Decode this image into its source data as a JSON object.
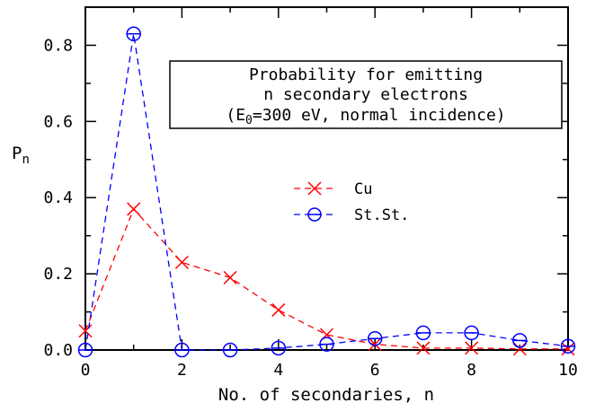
{
  "chart_data": {
    "type": "line",
    "xlabel": "No. of secondaries, n",
    "ylabel": {
      "main": "P",
      "sub": "n"
    },
    "xlim": [
      0,
      10
    ],
    "ylim": [
      0,
      0.9
    ],
    "xticks": [
      0,
      2,
      4,
      6,
      8,
      10
    ],
    "yticks": [
      0.0,
      0.2,
      0.4,
      0.6,
      0.8
    ],
    "xtick_labels": [
      "0",
      "2",
      "4",
      "6",
      "8",
      "10"
    ],
    "ytick_labels": [
      "0.0",
      "0.2",
      "0.4",
      "0.6",
      "0.8"
    ],
    "grid": false,
    "annotation": {
      "line1": "Probability for emitting",
      "line2": "n secondary electrons",
      "line3_pre": "(E",
      "line3_sub": "0",
      "line3_post": "=300 eV, normal incidence)"
    },
    "legend_placement": "center-right",
    "series": [
      {
        "name": "Cu",
        "color": "#ff0000",
        "marker": "x",
        "x": [
          0,
          1,
          2,
          3,
          4,
          5,
          6,
          7,
          8,
          9,
          10
        ],
        "y": [
          0.05,
          0.37,
          0.23,
          0.19,
          0.105,
          0.04,
          0.015,
          0.005,
          0.005,
          0.003,
          0.003
        ]
      },
      {
        "name": "St.St.",
        "color": "#0000ff",
        "marker": "circle",
        "x": [
          0,
          1,
          2,
          3,
          4,
          5,
          6,
          7,
          8,
          9,
          10
        ],
        "y": [
          0.0,
          0.83,
          0.0,
          0.0,
          0.005,
          0.015,
          0.03,
          0.045,
          0.045,
          0.025,
          0.01
        ]
      }
    ]
  }
}
